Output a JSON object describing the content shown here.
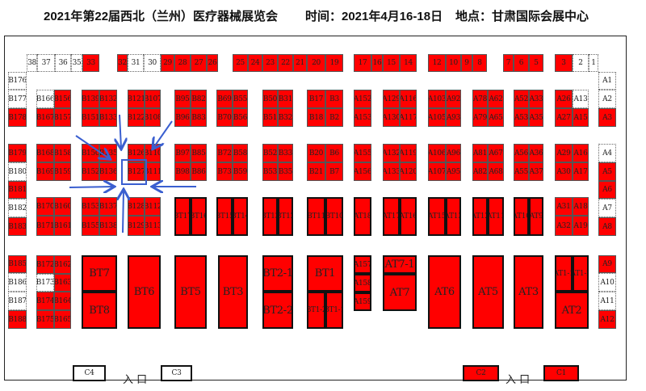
{
  "header": {
    "title": "2021年第22届西北（兰州）医疗器械展览会",
    "time": "时间：2021年4月16-18日",
    "venue": "地点：甘肃国际会展中心"
  },
  "colors": {
    "occupied": "#ff0000",
    "vacant": "#ffffff",
    "highlight": "#3a5fd0"
  },
  "highlight_icon": "arrows-pointing-to-B127",
  "top_row": [
    {
      "label": "38",
      "status": "vacant"
    },
    {
      "label": "37",
      "status": "vacant"
    },
    {
      "label": "36",
      "status": "vacant"
    },
    {
      "label": "35",
      "status": "vacant"
    },
    {
      "label": "33",
      "status": "occupied"
    },
    {
      "label": "32",
      "status": "occupied"
    },
    {
      "label": "31",
      "status": "vacant"
    },
    {
      "label": "30",
      "status": "vacant"
    },
    {
      "label": "29",
      "status": "occupied"
    },
    {
      "label": "28",
      "status": "occupied"
    },
    {
      "label": "27",
      "status": "occupied"
    },
    {
      "label": "26",
      "status": "occupied"
    },
    {
      "label": "25",
      "status": "occupied"
    },
    {
      "label": "24",
      "status": "occupied"
    },
    {
      "label": "23",
      "status": "occupied"
    },
    {
      "label": "22",
      "status": "occupied"
    },
    {
      "label": "21",
      "status": "occupied"
    },
    {
      "label": "20",
      "status": "occupied"
    },
    {
      "label": "19",
      "status": "occupied"
    },
    {
      "label": "17",
      "status": "occupied"
    },
    {
      "label": "16",
      "status": "occupied"
    },
    {
      "label": "15",
      "status": "occupied"
    },
    {
      "label": "14",
      "status": "occupied"
    },
    {
      "label": "12",
      "status": "occupied"
    },
    {
      "label": "10",
      "status": "occupied"
    },
    {
      "label": "9",
      "status": "occupied"
    },
    {
      "label": "8",
      "status": "occupied"
    },
    {
      "label": "7",
      "status": "occupied"
    },
    {
      "label": "6",
      "status": "occupied"
    },
    {
      "label": "5",
      "status": "occupied"
    },
    {
      "label": "3",
      "status": "occupied"
    },
    {
      "label": "2",
      "status": "vacant"
    },
    {
      "label": "1",
      "status": "vacant"
    }
  ],
  "left_col": [
    {
      "label": "B176",
      "status": "vacant"
    },
    {
      "label": "B177",
      "status": "vacant"
    },
    {
      "label": "B178",
      "status": "occupied"
    },
    {
      "label": "B179",
      "status": "occupied"
    },
    {
      "label": "B180",
      "status": "vacant"
    },
    {
      "label": "B181",
      "status": "occupied"
    },
    {
      "label": "B182",
      "status": "vacant"
    },
    {
      "label": "B183",
      "status": "occupied"
    },
    {
      "label": "B185",
      "status": "occupied"
    },
    {
      "label": "B186",
      "status": "vacant"
    },
    {
      "label": "B187",
      "status": "vacant"
    },
    {
      "label": "B188",
      "status": "occupied"
    }
  ],
  "right_col": [
    {
      "label": "A1",
      "status": "vacant"
    },
    {
      "label": "A2",
      "status": "vacant"
    },
    {
      "label": "A3",
      "status": "occupied"
    },
    {
      "label": "A4",
      "status": "vacant"
    },
    {
      "label": "A5",
      "status": "occupied"
    },
    {
      "label": "A6",
      "status": "occupied"
    },
    {
      "label": "A7",
      "status": "vacant"
    },
    {
      "label": "A8",
      "status": "occupied"
    },
    {
      "label": "A9",
      "status": "occupied"
    },
    {
      "label": "A10",
      "status": "vacant"
    },
    {
      "label": "A11",
      "status": "vacant"
    },
    {
      "label": "A12",
      "status": "occupied"
    }
  ],
  "blocks": [
    {
      "cells": [
        {
          "label": "B166",
          "status": "vacant"
        },
        {
          "label": "B156",
          "status": "occupied"
        },
        {
          "label": "B167",
          "status": "occupied"
        },
        {
          "label": "B157",
          "status": "occupied"
        }
      ]
    },
    {
      "cells": [
        {
          "label": "B139",
          "status": "occupied"
        },
        {
          "label": "B132",
          "status": "occupied"
        },
        {
          "label": "B151",
          "status": "occupied"
        },
        {
          "label": "B133",
          "status": "occupied"
        }
      ]
    },
    {
      "cells": [
        {
          "label": "B121",
          "status": "occupied"
        },
        {
          "label": "B107",
          "status": "occupied"
        },
        {
          "label": "B122",
          "status": "occupied"
        },
        {
          "label": "B108",
          "status": "occupied"
        }
      ]
    },
    {
      "cells": [
        {
          "label": "B95",
          "status": "occupied"
        },
        {
          "label": "B82",
          "status": "occupied"
        },
        {
          "label": "B96",
          "status": "occupied"
        },
        {
          "label": "B83",
          "status": "occupied"
        }
      ]
    },
    {
      "cells": [
        {
          "label": "B69",
          "status": "occupied"
        },
        {
          "label": "B55",
          "status": "occupied"
        },
        {
          "label": "B70",
          "status": "occupied"
        },
        {
          "label": "B56",
          "status": "occupied"
        }
      ]
    },
    {
      "cells": [
        {
          "label": "B50",
          "status": "occupied"
        },
        {
          "label": "B31",
          "status": "occupied"
        },
        {
          "label": "B51",
          "status": "occupied"
        },
        {
          "label": "B32",
          "status": "occupied"
        }
      ]
    },
    {
      "cells": [
        {
          "label": "B17",
          "status": "occupied"
        },
        {
          "label": "B3",
          "status": "occupied"
        },
        {
          "label": "B18",
          "status": "occupied"
        },
        {
          "label": "B2",
          "status": "occupied"
        }
      ]
    },
    {
      "cells": [
        {
          "label": "A152",
          "status": "occupied"
        },
        {
          "label": "A153",
          "status": "occupied"
        }
      ]
    },
    {
      "cells": [
        {
          "label": "A129",
          "status": "occupied"
        },
        {
          "label": "A116",
          "status": "occupied"
        },
        {
          "label": "A130",
          "status": "occupied"
        },
        {
          "label": "A117",
          "status": "occupied"
        }
      ]
    },
    {
      "cells": [
        {
          "label": "A103",
          "status": "occupied"
        },
        {
          "label": "A92",
          "status": "occupied"
        },
        {
          "label": "A105",
          "status": "occupied"
        },
        {
          "label": "A93",
          "status": "occupied"
        }
      ]
    },
    {
      "cells": [
        {
          "label": "A78",
          "status": "occupied"
        },
        {
          "label": "A62",
          "status": "occupied"
        },
        {
          "label": "A79",
          "status": "occupied"
        },
        {
          "label": "A65",
          "status": "occupied"
        }
      ]
    },
    {
      "cells": [
        {
          "label": "A52",
          "status": "occupied"
        },
        {
          "label": "A33",
          "status": "occupied"
        },
        {
          "label": "A53",
          "status": "occupied"
        },
        {
          "label": "A35",
          "status": "occupied"
        }
      ]
    },
    {
      "cells": [
        {
          "label": "A26",
          "status": "occupied"
        },
        {
          "label": "A13",
          "status": "vacant"
        },
        {
          "label": "A27",
          "status": "occupied"
        },
        {
          "label": "A15",
          "status": "occupied"
        }
      ]
    },
    {
      "cells": [
        {
          "label": "B168",
          "status": "occupied"
        },
        {
          "label": "B158",
          "status": "occupied"
        },
        {
          "label": "B169",
          "status": "occupied"
        },
        {
          "label": "B159",
          "status": "occupied"
        }
      ]
    },
    {
      "cells": [
        {
          "label": "B150",
          "status": "occupied"
        },
        {
          "label": "B135",
          "status": "occupied"
        },
        {
          "label": "B152",
          "status": "occupied"
        },
        {
          "label": "B136",
          "status": "occupied"
        }
      ]
    },
    {
      "cells": [
        {
          "label": "B126",
          "status": "occupied"
        },
        {
          "label": "B110",
          "status": "occupied"
        },
        {
          "label": "B127",
          "status": "occupied"
        },
        {
          "label": "B111",
          "status": "occupied"
        }
      ]
    },
    {
      "cells": [
        {
          "label": "B97",
          "status": "occupied"
        },
        {
          "label": "B85",
          "status": "occupied"
        },
        {
          "label": "B98",
          "status": "occupied"
        },
        {
          "label": "B86",
          "status": "occupied"
        }
      ]
    },
    {
      "cells": [
        {
          "label": "B72",
          "status": "occupied"
        },
        {
          "label": "B58",
          "status": "occupied"
        },
        {
          "label": "B73",
          "status": "occupied"
        },
        {
          "label": "B59",
          "status": "occupied"
        }
      ]
    },
    {
      "cells": [
        {
          "label": "B52",
          "status": "occupied"
        },
        {
          "label": "B33",
          "status": "occupied"
        },
        {
          "label": "B53",
          "status": "occupied"
        },
        {
          "label": "B35",
          "status": "occupied"
        }
      ]
    },
    {
      "cells": [
        {
          "label": "B20",
          "status": "occupied"
        },
        {
          "label": "B6",
          "status": "occupied"
        },
        {
          "label": "B21",
          "status": "occupied"
        },
        {
          "label": "B7",
          "status": "occupied"
        }
      ]
    },
    {
      "cells": [
        {
          "label": "A155",
          "status": "occupied"
        },
        {
          "label": "A156",
          "status": "occupied"
        }
      ]
    },
    {
      "cells": [
        {
          "label": "A132",
          "status": "occupied"
        },
        {
          "label": "A119",
          "status": "occupied"
        },
        {
          "label": "A133",
          "status": "occupied"
        },
        {
          "label": "A120",
          "status": "occupied"
        }
      ]
    },
    {
      "cells": [
        {
          "label": "A106",
          "status": "occupied"
        },
        {
          "label": "A96",
          "status": "occupied"
        },
        {
          "label": "A107",
          "status": "occupied"
        },
        {
          "label": "A95",
          "status": "occupied"
        }
      ]
    },
    {
      "cells": [
        {
          "label": "A81",
          "status": "occupied"
        },
        {
          "label": "A67",
          "status": "occupied"
        },
        {
          "label": "A82",
          "status": "occupied"
        },
        {
          "label": "A68",
          "status": "occupied"
        }
      ]
    },
    {
      "cells": [
        {
          "label": "A56",
          "status": "occupied"
        },
        {
          "label": "A36",
          "status": "occupied"
        },
        {
          "label": "A55",
          "status": "occupied"
        },
        {
          "label": "A37",
          "status": "occupied"
        }
      ]
    },
    {
      "cells": [
        {
          "label": "A29",
          "status": "occupied"
        },
        {
          "label": "A16",
          "status": "occupied"
        },
        {
          "label": "A30",
          "status": "occupied"
        },
        {
          "label": "A17",
          "status": "occupied"
        }
      ]
    },
    {
      "cells": [
        {
          "label": "B170",
          "status": "occupied"
        },
        {
          "label": "B160",
          "status": "occupied"
        },
        {
          "label": "B171",
          "status": "occupied"
        },
        {
          "label": "B161",
          "status": "occupied"
        }
      ]
    },
    {
      "cells": [
        {
          "label": "B153",
          "status": "occupied"
        },
        {
          "label": "B137",
          "status": "occupied"
        },
        {
          "label": "B155",
          "status": "occupied"
        },
        {
          "label": "B138",
          "status": "occupied"
        }
      ]
    },
    {
      "cells": [
        {
          "label": "B128",
          "status": "occupied"
        },
        {
          "label": "B112",
          "status": "occupied"
        },
        {
          "label": "B129",
          "status": "occupied"
        },
        {
          "label": "B113",
          "status": "occupied"
        }
      ]
    },
    {
      "cells": [
        {
          "label": "A31",
          "status": "occupied"
        },
        {
          "label": "A18",
          "status": "occupied"
        },
        {
          "label": "A32",
          "status": "occupied"
        },
        {
          "label": "A19",
          "status": "occupied"
        }
      ]
    }
  ],
  "tall_pairs": [
    [
      "BT17",
      "BT16"
    ],
    [
      "BT15",
      "BT14"
    ],
    [
      "BT13",
      "BT12"
    ],
    [
      "BT11",
      "BT10"
    ],
    [
      "AT18"
    ],
    [
      "AT17",
      "AT16"
    ],
    [
      "AT15",
      "AT13"
    ],
    [
      "AT12",
      "AT11"
    ],
    [
      "AT10",
      "AT9"
    ]
  ],
  "hall_booths": [
    {
      "label": "B172",
      "status": "occupied"
    },
    {
      "label": "B162",
      "status": "occupied"
    },
    {
      "label": "B173",
      "status": "vacant"
    },
    {
      "label": "B163",
      "status": "occupied"
    },
    {
      "label": "B174",
      "status": "occupied"
    },
    {
      "label": "B164",
      "status": "occupied"
    },
    {
      "label": "B175",
      "status": "occupied"
    },
    {
      "label": "B165",
      "status": "occupied"
    },
    {
      "label": "BT7",
      "status": "occupied"
    },
    {
      "label": "BT8",
      "status": "occupied"
    },
    {
      "label": "BT6",
      "status": "occupied"
    },
    {
      "label": "BT5",
      "status": "occupied"
    },
    {
      "label": "BT3",
      "status": "occupied"
    },
    {
      "label": "BT2-1",
      "status": "occupied"
    },
    {
      "label": "BT2-2",
      "status": "occupied"
    },
    {
      "label": "BT1",
      "status": "occupied"
    },
    {
      "label": "BT1-2",
      "status": "occupied"
    },
    {
      "label": "BT1-1",
      "status": "occupied"
    },
    {
      "label": "A157",
      "status": "occupied"
    },
    {
      "label": "A158",
      "status": "occupied"
    },
    {
      "label": "A159",
      "status": "occupied"
    },
    {
      "label": "AT7-1",
      "status": "occupied"
    },
    {
      "label": "AT7",
      "status": "occupied"
    },
    {
      "label": "AT6",
      "status": "occupied"
    },
    {
      "label": "AT5",
      "status": "occupied"
    },
    {
      "label": "AT3",
      "status": "occupied"
    },
    {
      "label": "AT1-1",
      "status": "occupied"
    },
    {
      "label": "AT1-2",
      "status": "occupied"
    },
    {
      "label": "AT2",
      "status": "occupied"
    }
  ],
  "entrances": {
    "booths": [
      {
        "label": "C4",
        "status": "vacant"
      },
      {
        "label": "C3",
        "status": "vacant"
      },
      {
        "label": "C2",
        "status": "occupied"
      },
      {
        "label": "C1",
        "status": "occupied"
      }
    ],
    "label": "入 口"
  }
}
